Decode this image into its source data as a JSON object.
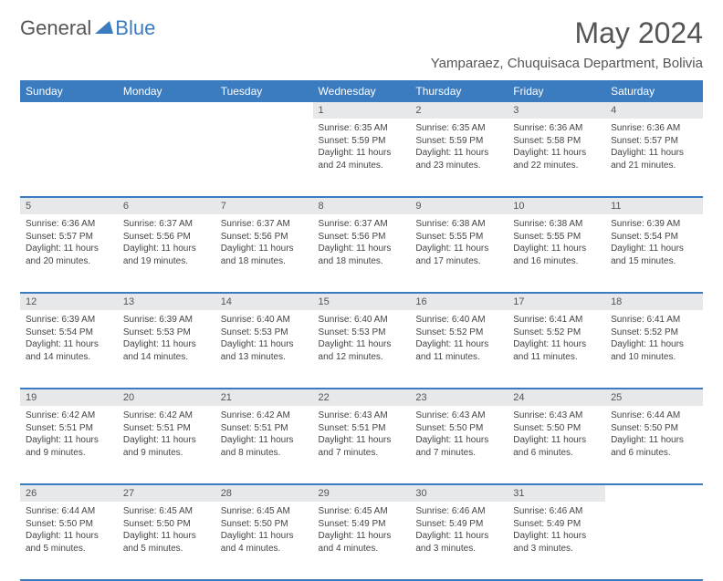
{
  "brand": {
    "part1": "General",
    "part2": "Blue"
  },
  "title": "May 2024",
  "location": "Yamparaez, Chuquisaca Department, Bolivia",
  "weekdays": [
    "Sunday",
    "Monday",
    "Tuesday",
    "Wednesday",
    "Thursday",
    "Friday",
    "Saturday"
  ],
  "colors": {
    "header_bg": "#3b7bbf",
    "header_text": "#ffffff",
    "daynum_bg": "#e6e8ea",
    "rule": "#3b7bbf",
    "body_text": "#444444",
    "title_text": "#555555"
  },
  "typography": {
    "month_title_fontsize": 32,
    "location_fontsize": 15,
    "weekday_fontsize": 12,
    "daynum_fontsize": 11,
    "cell_fontsize": 10
  },
  "layout": {
    "columns": 7,
    "rows": 5,
    "first_weekday_index": 3
  },
  "weeks": [
    [
      null,
      null,
      null,
      {
        "n": "1",
        "sunrise": "6:35 AM",
        "sunset": "5:59 PM",
        "daylight": "11 hours and 24 minutes."
      },
      {
        "n": "2",
        "sunrise": "6:35 AM",
        "sunset": "5:59 PM",
        "daylight": "11 hours and 23 minutes."
      },
      {
        "n": "3",
        "sunrise": "6:36 AM",
        "sunset": "5:58 PM",
        "daylight": "11 hours and 22 minutes."
      },
      {
        "n": "4",
        "sunrise": "6:36 AM",
        "sunset": "5:57 PM",
        "daylight": "11 hours and 21 minutes."
      }
    ],
    [
      {
        "n": "5",
        "sunrise": "6:36 AM",
        "sunset": "5:57 PM",
        "daylight": "11 hours and 20 minutes."
      },
      {
        "n": "6",
        "sunrise": "6:37 AM",
        "sunset": "5:56 PM",
        "daylight": "11 hours and 19 minutes."
      },
      {
        "n": "7",
        "sunrise": "6:37 AM",
        "sunset": "5:56 PM",
        "daylight": "11 hours and 18 minutes."
      },
      {
        "n": "8",
        "sunrise": "6:37 AM",
        "sunset": "5:56 PM",
        "daylight": "11 hours and 18 minutes."
      },
      {
        "n": "9",
        "sunrise": "6:38 AM",
        "sunset": "5:55 PM",
        "daylight": "11 hours and 17 minutes."
      },
      {
        "n": "10",
        "sunrise": "6:38 AM",
        "sunset": "5:55 PM",
        "daylight": "11 hours and 16 minutes."
      },
      {
        "n": "11",
        "sunrise": "6:39 AM",
        "sunset": "5:54 PM",
        "daylight": "11 hours and 15 minutes."
      }
    ],
    [
      {
        "n": "12",
        "sunrise": "6:39 AM",
        "sunset": "5:54 PM",
        "daylight": "11 hours and 14 minutes."
      },
      {
        "n": "13",
        "sunrise": "6:39 AM",
        "sunset": "5:53 PM",
        "daylight": "11 hours and 14 minutes."
      },
      {
        "n": "14",
        "sunrise": "6:40 AM",
        "sunset": "5:53 PM",
        "daylight": "11 hours and 13 minutes."
      },
      {
        "n": "15",
        "sunrise": "6:40 AM",
        "sunset": "5:53 PM",
        "daylight": "11 hours and 12 minutes."
      },
      {
        "n": "16",
        "sunrise": "6:40 AM",
        "sunset": "5:52 PM",
        "daylight": "11 hours and 11 minutes."
      },
      {
        "n": "17",
        "sunrise": "6:41 AM",
        "sunset": "5:52 PM",
        "daylight": "11 hours and 11 minutes."
      },
      {
        "n": "18",
        "sunrise": "6:41 AM",
        "sunset": "5:52 PM",
        "daylight": "11 hours and 10 minutes."
      }
    ],
    [
      {
        "n": "19",
        "sunrise": "6:42 AM",
        "sunset": "5:51 PM",
        "daylight": "11 hours and 9 minutes."
      },
      {
        "n": "20",
        "sunrise": "6:42 AM",
        "sunset": "5:51 PM",
        "daylight": "11 hours and 9 minutes."
      },
      {
        "n": "21",
        "sunrise": "6:42 AM",
        "sunset": "5:51 PM",
        "daylight": "11 hours and 8 minutes."
      },
      {
        "n": "22",
        "sunrise": "6:43 AM",
        "sunset": "5:51 PM",
        "daylight": "11 hours and 7 minutes."
      },
      {
        "n": "23",
        "sunrise": "6:43 AM",
        "sunset": "5:50 PM",
        "daylight": "11 hours and 7 minutes."
      },
      {
        "n": "24",
        "sunrise": "6:43 AM",
        "sunset": "5:50 PM",
        "daylight": "11 hours and 6 minutes."
      },
      {
        "n": "25",
        "sunrise": "6:44 AM",
        "sunset": "5:50 PM",
        "daylight": "11 hours and 6 minutes."
      }
    ],
    [
      {
        "n": "26",
        "sunrise": "6:44 AM",
        "sunset": "5:50 PM",
        "daylight": "11 hours and 5 minutes."
      },
      {
        "n": "27",
        "sunrise": "6:45 AM",
        "sunset": "5:50 PM",
        "daylight": "11 hours and 5 minutes."
      },
      {
        "n": "28",
        "sunrise": "6:45 AM",
        "sunset": "5:50 PM",
        "daylight": "11 hours and 4 minutes."
      },
      {
        "n": "29",
        "sunrise": "6:45 AM",
        "sunset": "5:49 PM",
        "daylight": "11 hours and 4 minutes."
      },
      {
        "n": "30",
        "sunrise": "6:46 AM",
        "sunset": "5:49 PM",
        "daylight": "11 hours and 3 minutes."
      },
      {
        "n": "31",
        "sunrise": "6:46 AM",
        "sunset": "5:49 PM",
        "daylight": "11 hours and 3 minutes."
      },
      null
    ]
  ],
  "labels": {
    "sunrise": "Sunrise:",
    "sunset": "Sunset:",
    "daylight": "Daylight:"
  }
}
